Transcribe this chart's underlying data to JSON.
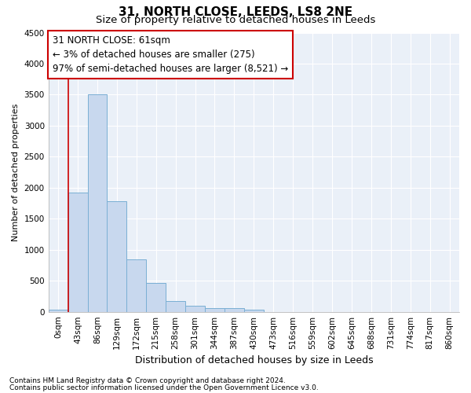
{
  "title": "31, NORTH CLOSE, LEEDS, LS8 2NE",
  "subtitle": "Size of property relative to detached houses in Leeds",
  "xlabel": "Distribution of detached houses by size in Leeds",
  "ylabel": "Number of detached properties",
  "bar_color": "#c8d8ee",
  "bar_edge_color": "#7aafd4",
  "categories": [
    "0sqm",
    "43sqm",
    "86sqm",
    "129sqm",
    "172sqm",
    "215sqm",
    "258sqm",
    "301sqm",
    "344sqm",
    "387sqm",
    "430sqm",
    "473sqm",
    "516sqm",
    "559sqm",
    "602sqm",
    "645sqm",
    "688sqm",
    "731sqm",
    "774sqm",
    "817sqm",
    "860sqm"
  ],
  "values": [
    30,
    1920,
    3500,
    1780,
    850,
    460,
    170,
    100,
    65,
    55,
    30,
    0,
    0,
    0,
    0,
    0,
    0,
    0,
    0,
    0,
    0
  ],
  "ylim": [
    0,
    4500
  ],
  "yticks": [
    0,
    500,
    1000,
    1500,
    2000,
    2500,
    3000,
    3500,
    4000,
    4500
  ],
  "vline_x": 1.0,
  "vline_color": "#cc0000",
  "annotation_line1": "31 NORTH CLOSE: 61sqm",
  "annotation_line2": "← 3% of detached houses are smaller (275)",
  "annotation_line3": "97% of semi-detached houses are larger (8,521) →",
  "annotation_box_color": "#ffffff",
  "annotation_box_edge": "#cc0000",
  "footer1": "Contains HM Land Registry data © Crown copyright and database right 2024.",
  "footer2": "Contains public sector information licensed under the Open Government Licence v3.0.",
  "background_color": "#eaf0f8",
  "grid_color": "#ffffff",
  "title_fontsize": 11,
  "subtitle_fontsize": 9.5,
  "xlabel_fontsize": 9,
  "ylabel_fontsize": 8,
  "tick_fontsize": 7.5,
  "annotation_fontsize": 8.5,
  "footer_fontsize": 6.5
}
